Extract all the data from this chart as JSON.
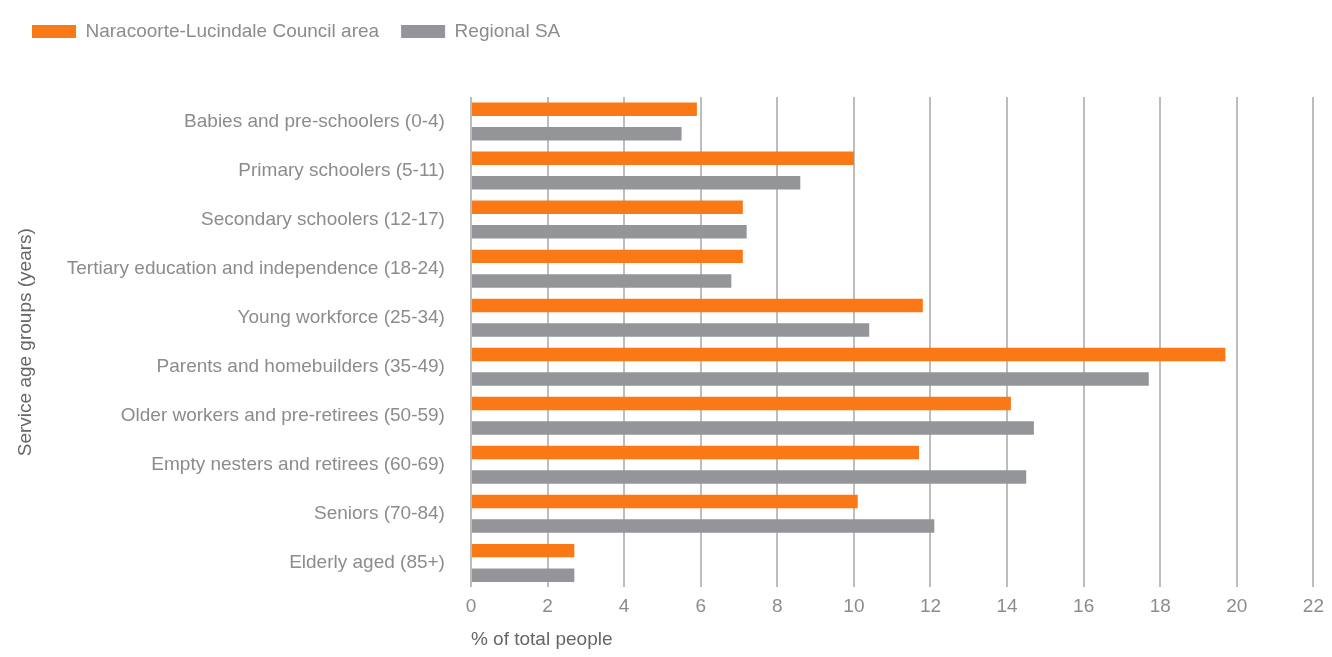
{
  "chart_data": {
    "type": "bar",
    "orientation": "horizontal",
    "xlabel": "% of total people",
    "ylabel": "Service age groups (years)",
    "categories": [
      "Babies and pre-schoolers (0-4)",
      "Primary schoolers (5-11)",
      "Secondary schoolers (12-17)",
      "Tertiary education and independence (18-24)",
      "Young workforce (25-34)",
      "Parents and homebuilders (35-49)",
      "Older workers and pre-retirees (50-59)",
      "Empty nesters and retirees (60-69)",
      "Seniors (70-84)",
      "Elderly aged (85+)"
    ],
    "series": [
      {
        "name": "Naracoorte-Lucindale Council area",
        "color": "#fb7816",
        "values": [
          5.9,
          10.0,
          7.1,
          7.1,
          11.8,
          19.7,
          14.1,
          11.7,
          10.1,
          2.7
        ]
      },
      {
        "name": "Regional SA",
        "color": "#939598",
        "values": [
          5.5,
          8.6,
          7.2,
          6.8,
          10.4,
          17.7,
          14.7,
          14.5,
          12.1,
          2.7
        ]
      }
    ],
    "xlim": [
      0,
      22
    ],
    "xticks": [
      0,
      2,
      4,
      6,
      8,
      10,
      12,
      14,
      16,
      18,
      20,
      22
    ],
    "grid": "x",
    "legend": "top left"
  }
}
